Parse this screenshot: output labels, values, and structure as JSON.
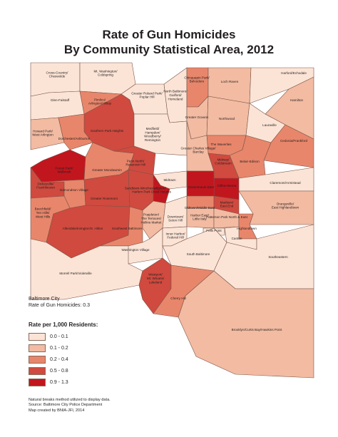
{
  "title_line1": "Rate of Gun Homicides",
  "title_line2": "By Community Statistical Area, 2012",
  "palette": {
    "c1": "#fbe4d6",
    "c2": "#f2bba2",
    "c3": "#e8866b",
    "c4": "#d04a3f",
    "c5": "#c2161e",
    "outline": "#7a5548"
  },
  "areas": [
    {
      "name": "Cross-Country/ Cheswolde",
      "class": 1
    },
    {
      "name": "Mt. Washington/ Coldspring",
      "class": 1
    },
    {
      "name": "Glen-Falstaff",
      "class": 1
    },
    {
      "name": "Greater Roland Park/ Poplar Hill",
      "class": 1
    },
    {
      "name": "North Baltimore/ Guilford/ Homeland",
      "class": 1
    },
    {
      "name": "Chinquapin Park/ Belvedere",
      "class": 3
    },
    {
      "name": "Loch Raven",
      "class": 2
    },
    {
      "name": "Harford/Echodale",
      "class": 1
    },
    {
      "name": "Hamilton",
      "class": 2
    },
    {
      "name": "Pimlico/ Arlington/Hilltop",
      "class": 3
    },
    {
      "name": "Southern Park Heights",
      "class": 4
    },
    {
      "name": "Greater Govans",
      "class": 2
    },
    {
      "name": "Northwood",
      "class": 2
    },
    {
      "name": "Lauraville",
      "class": 1
    },
    {
      "name": "Howard Park/ West Arlington",
      "class": 2
    },
    {
      "name": "Dorchester/Ashburton",
      "class": 3
    },
    {
      "name": "Medfield/ Hampden/ Woodberry/ Remington",
      "class": 1
    },
    {
      "name": "Cedonia/Frankford",
      "class": 3
    },
    {
      "name": "The Waverlies",
      "class": 3
    },
    {
      "name": "Greater Charles Village/ Barclay",
      "class": 2
    },
    {
      "name": "Belair-Edison",
      "class": 3
    },
    {
      "name": "Forest Park/ Walbrook",
      "class": 5
    },
    {
      "name": "Greater Mondawmin",
      "class": 3
    },
    {
      "name": "Penn North/ Reservoir Hill",
      "class": 4
    },
    {
      "name": "Midway/ Coldstream",
      "class": 4
    },
    {
      "name": "Clifton-Berea",
      "class": 5
    },
    {
      "name": "Dickeyville/ Franklintown",
      "class": 4
    },
    {
      "name": "Midtown",
      "class": 1
    },
    {
      "name": "Greenmount East",
      "class": 5
    },
    {
      "name": "Claremont/Armistead",
      "class": 1
    },
    {
      "name": "Edmondson Village",
      "class": 3
    },
    {
      "name": "Greater Rosemont",
      "class": 4
    },
    {
      "name": "Sandtown-Winchester/ Harlem Park",
      "class": 4
    },
    {
      "name": "Upton/ Druid Heights",
      "class": 5
    },
    {
      "name": "Oldtown/Middle East",
      "class": 3
    },
    {
      "name": "Madison/ East End",
      "class": 4
    },
    {
      "name": "Orangeville/ East Highlandtown",
      "class": 2
    },
    {
      "name": "Beechfield/ Ten Hills/ West Hills",
      "class": 3
    },
    {
      "name": "Allendale/Irvington/S. Hilton",
      "class": 4
    },
    {
      "name": "Southwest Baltimore",
      "class": 3
    },
    {
      "name": "Poppleton/ The Terraces/ Hollins Market",
      "class": 2
    },
    {
      "name": "Downtown/ Seton Hill",
      "class": 1
    },
    {
      "name": "Harbor East/ Little Italy",
      "class": 2
    },
    {
      "name": "Patterson Park North & East",
      "class": 2
    },
    {
      "name": "Fells Point",
      "class": 1
    },
    {
      "name": "Highlandtown",
      "class": 3
    },
    {
      "name": "Canton",
      "class": 1
    },
    {
      "name": "Washington Village",
      "class": 1
    },
    {
      "name": "Inner Harbor/ Federal Hill",
      "class": 1
    },
    {
      "name": "South Baltimore",
      "class": 1
    },
    {
      "name": "Southeastern",
      "class": 1
    },
    {
      "name": "Morrell Park/Violetville",
      "class": 1
    },
    {
      "name": "Westport/ Mt. Winans/ Lakeland",
      "class": 4
    },
    {
      "name": "Cherry Hill",
      "class": 3
    },
    {
      "name": "Brooklyn/Curtis Bay/Hawkins Point",
      "class": 2
    }
  ],
  "city_label": "Baltimore City",
  "city_rate": "Rate of Gun Homicides: 0.3",
  "legend": {
    "title": "Rate per 1,000 Residents:",
    "items": [
      {
        "label": "0.0 - 0.1",
        "color": "#fbe4d6"
      },
      {
        "label": "0.1 - 0.2",
        "color": "#f2bba2"
      },
      {
        "label": "0.2 - 0.4",
        "color": "#e8866b"
      },
      {
        "label": "0.5 - 0.8",
        "color": "#d04a3f"
      },
      {
        "label": "0.9 - 1.3",
        "color": "#c2161e"
      }
    ]
  },
  "notes": [
    "Natural breaks method utilized to display data.",
    "Source: Baltimore City Police Department",
    "Map created by BNIA-JFI, 2014"
  ]
}
